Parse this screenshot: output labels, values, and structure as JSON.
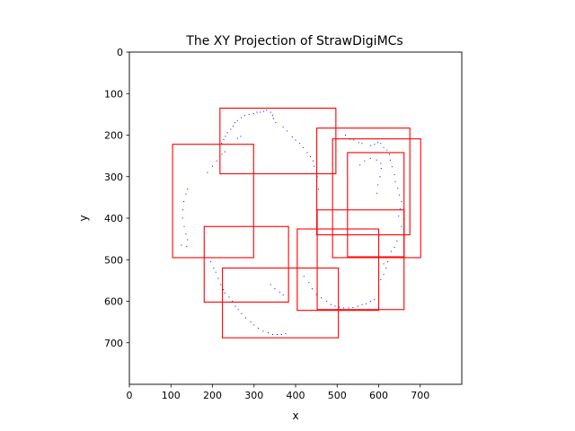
{
  "chart_data": {
    "type": "scatter",
    "title": "The XY Projection of StrawDigiMCs",
    "xlabel": "x",
    "ylabel": "y",
    "xlim": [
      0,
      800
    ],
    "ylim": [
      800,
      0
    ],
    "y_inverted": true,
    "xticks": [
      0,
      100,
      200,
      300,
      400,
      500,
      600,
      700
    ],
    "yticks": [
      0,
      100,
      200,
      300,
      400,
      500,
      600,
      700
    ],
    "aspect": "equal",
    "grid": false,
    "legend": "none",
    "point_color": "#0000ff",
    "box_color": "#ff0000",
    "boxes": [
      {
        "x0": 218,
        "y0": 135,
        "x1": 497,
        "y1": 293
      },
      {
        "x0": 104,
        "y0": 222,
        "x1": 299,
        "y1": 495
      },
      {
        "x0": 451,
        "y0": 183,
        "x1": 675,
        "y1": 440
      },
      {
        "x0": 489,
        "y0": 209,
        "x1": 701,
        "y1": 495
      },
      {
        "x0": 525,
        "y0": 242,
        "x1": 661,
        "y1": 493
      },
      {
        "x0": 452,
        "y0": 380,
        "x1": 661,
        "y1": 620
      },
      {
        "x0": 404,
        "y0": 426,
        "x1": 600,
        "y1": 622
      },
      {
        "x0": 180,
        "y0": 420,
        "x1": 383,
        "y1": 602
      },
      {
        "x0": 224,
        "y0": 520,
        "x1": 503,
        "y1": 688
      }
    ],
    "points": [
      [
        323,
        143
      ],
      [
        315,
        145
      ],
      [
        307,
        145
      ],
      [
        299,
        148
      ],
      [
        288,
        150
      ],
      [
        278,
        153
      ],
      [
        269,
        158
      ],
      [
        260,
        165
      ],
      [
        254,
        170
      ],
      [
        250,
        178
      ],
      [
        244,
        186
      ],
      [
        236,
        194
      ],
      [
        231,
        203
      ],
      [
        227,
        211
      ],
      [
        222,
        220
      ],
      [
        260,
        208
      ],
      [
        268,
        203
      ],
      [
        330,
        140
      ],
      [
        340,
        145
      ],
      [
        345,
        152
      ],
      [
        347,
        160
      ],
      [
        352,
        170
      ],
      [
        230,
        240
      ],
      [
        223,
        246
      ],
      [
        210,
        262
      ],
      [
        200,
        275
      ],
      [
        188,
        290
      ],
      [
        140,
        330
      ],
      [
        136,
        342
      ],
      [
        131,
        360
      ],
      [
        129,
        380
      ],
      [
        128,
        400
      ],
      [
        132,
        420
      ],
      [
        136,
        438
      ],
      [
        140,
        452
      ],
      [
        125,
        465
      ],
      [
        138,
        468
      ],
      [
        370,
        180
      ],
      [
        380,
        190
      ],
      [
        392,
        204
      ],
      [
        400,
        212
      ],
      [
        410,
        220
      ],
      [
        418,
        230
      ],
      [
        428,
        242
      ],
      [
        436,
        252
      ],
      [
        442,
        262
      ],
      [
        445,
        275
      ],
      [
        452,
        300
      ],
      [
        455,
        330
      ],
      [
        605,
        220
      ],
      [
        612,
        230
      ],
      [
        620,
        236
      ],
      [
        626,
        246
      ],
      [
        628,
        260
      ],
      [
        632,
        276
      ],
      [
        638,
        295
      ],
      [
        640,
        312
      ],
      [
        646,
        328
      ],
      [
        650,
        344
      ],
      [
        655,
        360
      ],
      [
        652,
        378
      ],
      [
        648,
        395
      ],
      [
        660,
        402
      ],
      [
        655,
        420
      ],
      [
        650,
        440
      ],
      [
        644,
        455
      ],
      [
        638,
        470
      ],
      [
        630,
        480
      ],
      [
        625,
        495
      ],
      [
        612,
        510
      ],
      [
        520,
        200
      ],
      [
        530,
        210
      ],
      [
        540,
        212
      ],
      [
        552,
        218
      ],
      [
        560,
        220
      ],
      [
        580,
        225
      ],
      [
        590,
        222
      ],
      [
        598,
        218
      ],
      [
        555,
        272
      ],
      [
        566,
        262
      ],
      [
        580,
        256
      ],
      [
        595,
        260
      ],
      [
        605,
        268
      ],
      [
        606,
        280
      ],
      [
        603,
        300
      ],
      [
        598,
        320
      ],
      [
        596,
        340
      ],
      [
        420,
        540
      ],
      [
        432,
        555
      ],
      [
        440,
        570
      ],
      [
        450,
        584
      ],
      [
        462,
        592
      ],
      [
        475,
        600
      ],
      [
        485,
        608
      ],
      [
        495,
        612
      ],
      [
        505,
        614
      ],
      [
        516,
        616
      ],
      [
        528,
        616
      ],
      [
        538,
        615
      ],
      [
        550,
        612
      ],
      [
        560,
        608
      ],
      [
        570,
        606
      ],
      [
        580,
        600
      ],
      [
        590,
        596
      ],
      [
        600,
        560
      ],
      [
        605,
        548
      ],
      [
        612,
        535
      ],
      [
        618,
        520
      ],
      [
        622,
        505
      ],
      [
        196,
        505
      ],
      [
        203,
        520
      ],
      [
        208,
        530
      ],
      [
        214,
        545
      ],
      [
        220,
        560
      ],
      [
        226,
        572
      ],
      [
        230,
        580
      ],
      [
        240,
        590
      ],
      [
        248,
        600
      ],
      [
        255,
        612
      ],
      [
        262,
        620
      ],
      [
        270,
        630
      ],
      [
        280,
        640
      ],
      [
        292,
        650
      ],
      [
        300,
        657
      ],
      [
        310,
        665
      ],
      [
        322,
        672
      ],
      [
        334,
        676
      ],
      [
        345,
        680
      ],
      [
        356,
        680
      ],
      [
        366,
        680
      ],
      [
        376,
        678
      ],
      [
        340,
        560
      ],
      [
        350,
        570
      ],
      [
        362,
        578
      ],
      [
        370,
        585
      ]
    ]
  }
}
